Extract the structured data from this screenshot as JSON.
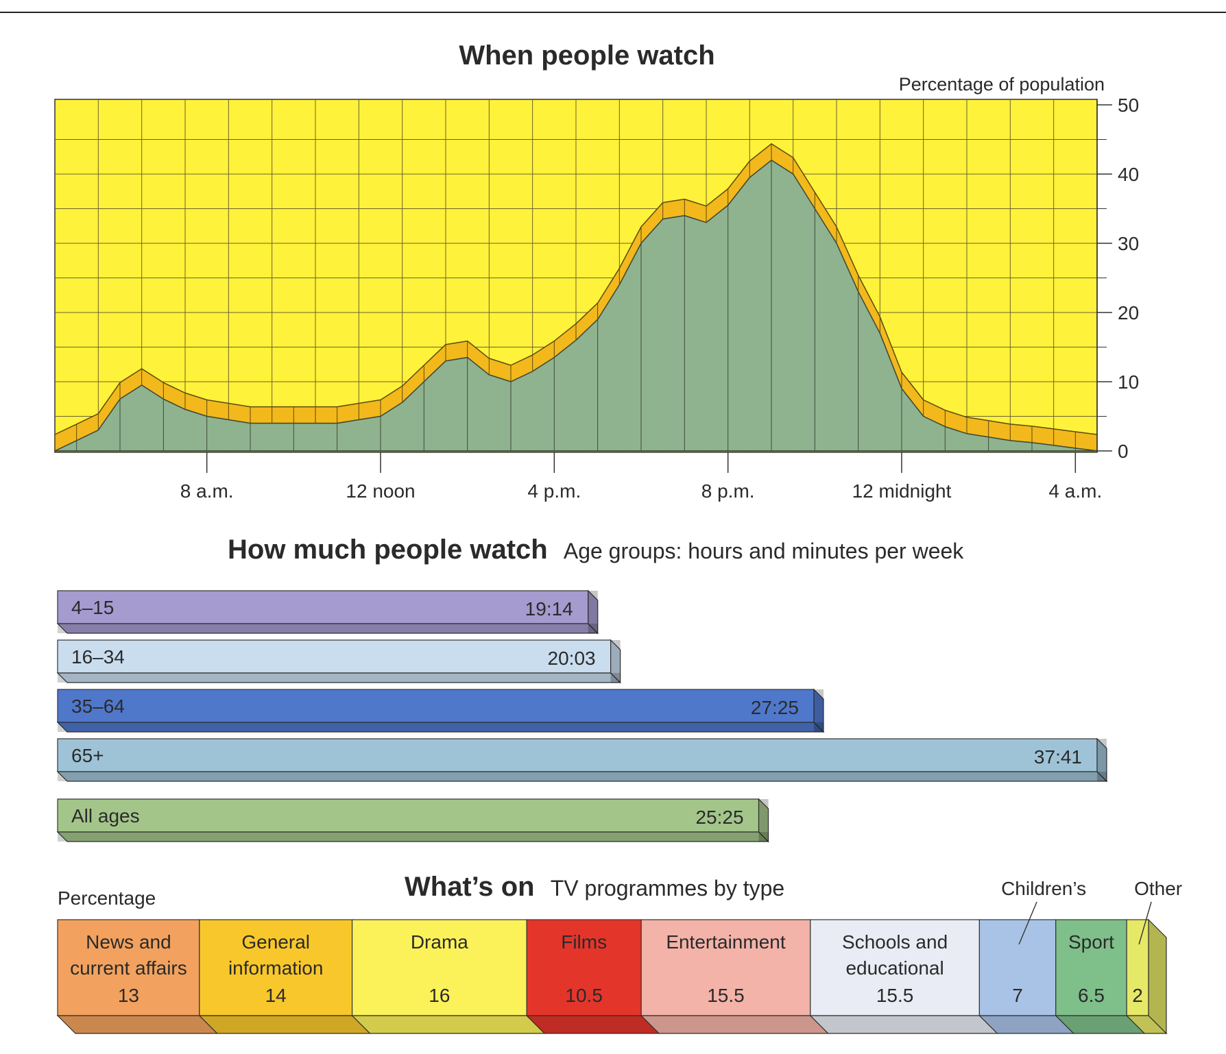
{
  "colors": {
    "plot_background": "#fff23a",
    "grid": "#6b6230",
    "area_fill": "#8fb38e",
    "ribbon_fill": "#f3b81c",
    "text": "#222222"
  },
  "chart_data": [
    {
      "type": "area",
      "title": "When people watch",
      "ylabel": "Percentage of population",
      "ylim": [
        0,
        50
      ],
      "y_ticks": [
        "0",
        "10",
        "20",
        "30",
        "40",
        "50"
      ],
      "x_ticks": [
        {
          "time": "8:00",
          "label": "8 a.m."
        },
        {
          "time": "12:00",
          "label": "12 noon"
        },
        {
          "time": "16:00",
          "label": "4 p.m."
        },
        {
          "time": "20:00",
          "label": "8 p.m."
        },
        {
          "time": "24:00",
          "label": "12 midnight"
        },
        {
          "time": "28:00",
          "label": "4 a.m."
        }
      ],
      "series": [
        {
          "x": [
            "4:30",
            "5:00",
            "5:30",
            "6:00",
            "6:30",
            "7:00",
            "7:30",
            "8:00",
            "8:30",
            "9:00",
            "9:30",
            "10:00",
            "10:30",
            "11:00",
            "11:30",
            "12:00",
            "12:30",
            "13:00",
            "13:30",
            "14:00",
            "14:30",
            "15:00",
            "15:30",
            "16:00",
            "16:30",
            "17:00",
            "17:30",
            "18:00",
            "18:30",
            "19:00",
            "19:30",
            "20:00",
            "20:30",
            "21:00",
            "21:30",
            "22:00",
            "22:30",
            "23:00",
            "23:30",
            "24:00",
            "24:30",
            "25:00",
            "25:30",
            "26:00",
            "26:30",
            "27:00",
            "27:30",
            "28:00",
            "28:30"
          ],
          "values": [
            0,
            1.5,
            3,
            7.5,
            9.5,
            7.5,
            6,
            5,
            4.5,
            4,
            4,
            4,
            4,
            4,
            4.5,
            5,
            7,
            10,
            13,
            13.5,
            11,
            10,
            11.5,
            13.5,
            16,
            19,
            24,
            30,
            33.5,
            34,
            33,
            35.5,
            39.5,
            42,
            40,
            35,
            30,
            23,
            17,
            9,
            5,
            3.5,
            2.5,
            2,
            1.5,
            1.2,
            0.8,
            0.4,
            0
          ]
        }
      ]
    },
    {
      "type": "bar",
      "title": "How much people watch",
      "subtitle": "Age groups: hours and minutes per week",
      "categories": [
        "4–15",
        "16–34",
        "35–64",
        "65+",
        "All ages"
      ],
      "values": [
        19.233,
        20.05,
        27.417,
        37.683,
        25.417
      ],
      "value_labels": [
        "19:14",
        "20:03",
        "27:25",
        "37:41",
        "25:25"
      ],
      "colors": [
        "#a59bcf",
        "#c9ddef",
        "#4f78cb",
        "#9fc3d6",
        "#a3c58a"
      ],
      "xlim": [
        0,
        37.683
      ]
    },
    {
      "type": "bar",
      "title": "What’s on",
      "subtitle": "TV programmes by type",
      "ylabel": "Percentage",
      "categories": [
        "News and current affairs",
        "General information",
        "Drama",
        "Films",
        "Entertainment",
        "Schools and educational",
        "Children’s",
        "Sport",
        "Other"
      ],
      "category_lines": [
        [
          "News and",
          "current affairs"
        ],
        [
          "General",
          "information"
        ],
        [
          "Drama"
        ],
        [
          "Films"
        ],
        [
          "Entertainment"
        ],
        [
          "Schools and",
          "educational"
        ],
        [],
        [
          "Sport"
        ],
        []
      ],
      "callouts": [
        "",
        "",
        "",
        "",
        "",
        "",
        "Children’s",
        "",
        "Other"
      ],
      "values": [
        13,
        14,
        16,
        10.5,
        15.5,
        15.5,
        7,
        6.5,
        2
      ],
      "value_labels": [
        "13",
        "14",
        "16",
        "10.5",
        "15.5",
        "15.5",
        "7",
        "6.5",
        "2"
      ],
      "colors": [
        "#f2a25e",
        "#f8c72b",
        "#fbf25a",
        "#e4352a",
        "#f3b3a8",
        "#e9ecf4",
        "#a9c3e6",
        "#7fbf8a",
        "#e6e867"
      ]
    }
  ]
}
